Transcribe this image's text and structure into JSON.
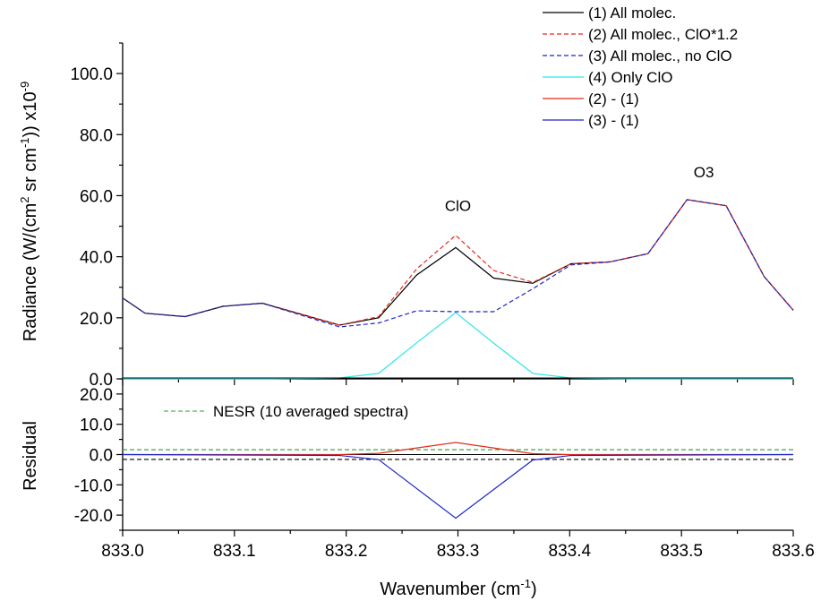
{
  "chart_data": [
    {
      "type": "line",
      "panel": "main",
      "ylabel": "Radiance (W/(cm² sr cm⁻¹)) x10⁻⁹",
      "ylabel_parts": {
        "p1": "Radiance (W/(cm",
        "sup1": "2",
        "p2": " sr cm",
        "sup2": "-1",
        "p3": ")) x10",
        "sup3": "-9"
      },
      "xlabel": "Wavenumber (cm⁻¹)",
      "xlabel_parts": {
        "base": "Wavenumber (cm",
        "sup": "-1",
        "tail": ")"
      },
      "xlim": [
        833.0,
        833.6
      ],
      "ylim": [
        0,
        110
      ],
      "x_ticks": [
        "833.0",
        "833.1",
        "833.2",
        "833.3",
        "833.4",
        "833.5",
        "833.6"
      ],
      "y_ticks": [
        "0.0",
        "20.0",
        "40.0",
        "60.0",
        "80.0",
        "100.0"
      ],
      "annotations": [
        {
          "text": "ClO",
          "x": 833.3,
          "y": 55
        },
        {
          "text": "O3",
          "x": 833.52,
          "y": 66
        }
      ],
      "x": [
        833.0,
        833.02,
        833.056,
        833.09,
        833.125,
        833.194,
        833.229,
        833.263,
        833.298,
        833.332,
        833.367,
        833.401,
        833.436,
        833.47,
        833.505,
        833.54,
        833.574,
        833.6
      ],
      "series": [
        {
          "name": "(1) All molec.",
          "color": "#000000",
          "dash": "solid",
          "values": [
            26.5,
            21.5,
            20.4,
            23.8,
            24.8,
            17.6,
            20.0,
            34.0,
            43.0,
            33.0,
            31.3,
            37.7,
            38.3,
            41.0,
            58.7,
            56.7,
            33.5,
            22.5
          ]
        },
        {
          "name": "(2) All molec., ClO*1.2",
          "color": "#e8291c",
          "dash": "dashed",
          "values": [
            26.5,
            21.5,
            20.4,
            23.8,
            24.8,
            17.6,
            20.4,
            36.0,
            47.0,
            35.5,
            31.6,
            37.7,
            38.3,
            41.0,
            58.7,
            56.7,
            33.5,
            22.5
          ]
        },
        {
          "name": "(3) All molec., no ClO",
          "color": "#1f26c8",
          "dash": "dashed",
          "values": [
            26.5,
            21.5,
            20.4,
            23.8,
            24.8,
            17.0,
            18.3,
            22.3,
            22.0,
            22.0,
            29.5,
            37.3,
            38.3,
            41.0,
            58.7,
            56.7,
            33.5,
            22.5
          ]
        },
        {
          "name": "(4) Only ClO",
          "color": "#2ee6e6",
          "dash": "solid",
          "values": [
            0.0,
            0.0,
            0.0,
            0.0,
            0.0,
            0.3,
            1.8,
            11.8,
            21.7,
            11.7,
            1.8,
            0.3,
            0.1,
            0.0,
            0.0,
            0.0,
            0.0,
            0.0
          ]
        }
      ]
    },
    {
      "type": "line",
      "panel": "residual",
      "ylabel": "Residual",
      "xlim": [
        833.0,
        833.6
      ],
      "ylim": [
        -25,
        25
      ],
      "y_ticks": [
        "-20.0",
        "-10.0",
        "0.0",
        "10.0",
        "20.0"
      ],
      "x": [
        833.0,
        833.194,
        833.229,
        833.298,
        833.367,
        833.401,
        833.6
      ],
      "series": [
        {
          "name": "(2) - (1)",
          "color": "#e8291c",
          "dash": "solid",
          "values": [
            0.0,
            0.0,
            0.4,
            4.0,
            0.3,
            0.0,
            0.0
          ]
        },
        {
          "name": "(3) - (1)",
          "color": "#1f26c8",
          "dash": "solid",
          "values": [
            0.0,
            -0.3,
            -1.7,
            -21.0,
            -1.8,
            -0.3,
            0.0
          ]
        }
      ],
      "reference_lines": [
        {
          "name": "NESR (10 averaged spectra)",
          "color": "#2e9a2e",
          "dash": "dashed",
          "values": [
            1.6
          ]
        },
        {
          "color": "#000000",
          "dash": "dashed",
          "values": [
            -1.6
          ]
        },
        {
          "color": "#000000",
          "dash": "solid",
          "values": [
            0.0
          ]
        }
      ],
      "legend": {
        "label": "NESR (10 averaged spectra)",
        "placement": "top-left"
      }
    }
  ],
  "legend": {
    "placement": "top-right",
    "entries": [
      {
        "label": "(1) All molec.",
        "color": "#000000",
        "dash": "solid"
      },
      {
        "label": "(2) All molec., ClO*1.2",
        "color": "#e8291c",
        "dash": "dashed"
      },
      {
        "label": "(3) All molec., no ClO",
        "color": "#1f26c8",
        "dash": "dashed"
      },
      {
        "label": "(4) Only ClO",
        "color": "#2ee6e6",
        "dash": "solid"
      },
      {
        "label": "(2) - (1)",
        "color": "#e8291c",
        "dash": "solid"
      },
      {
        "label": "(3) - (1)",
        "color": "#1f26c8",
        "dash": "solid"
      }
    ]
  }
}
